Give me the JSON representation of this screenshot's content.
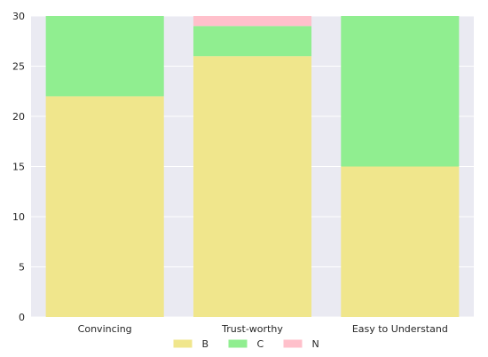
{
  "chart_data": {
    "type": "bar",
    "stacked": true,
    "title": "",
    "xlabel": "",
    "ylabel": "",
    "categories": [
      "Convincing",
      "Trust-worthy",
      "Easy to Understand"
    ],
    "series": [
      {
        "name": "B",
        "color": "#f0e68c",
        "values": [
          22,
          26,
          15
        ]
      },
      {
        "name": "C",
        "color": "#90ee90",
        "values": [
          8,
          3,
          15
        ]
      },
      {
        "name": "N",
        "color": "#ffc0cb",
        "values": [
          0,
          1,
          0
        ]
      }
    ],
    "ylim": [
      0,
      30
    ],
    "yticks": [
      0,
      5,
      10,
      15,
      20,
      25,
      30
    ],
    "grid": true,
    "legend_position": "bottom-center",
    "background": "#eaeaf2"
  }
}
